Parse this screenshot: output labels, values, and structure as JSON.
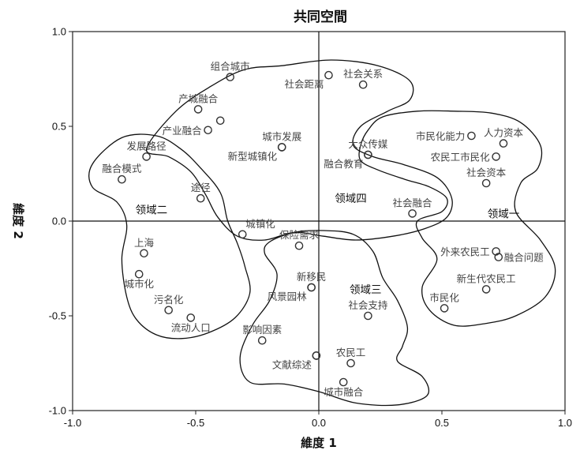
{
  "chart_data": {
    "type": "scatter",
    "title": "共同空間",
    "xlabel": "維度 1",
    "ylabel": "維度 2",
    "xlim": [
      -1.0,
      1.0
    ],
    "ylim": [
      -1.0,
      1.0
    ],
    "x_ticks": [
      "-1.0",
      "-0.5",
      "0.0",
      "0.5",
      "1.0"
    ],
    "y_ticks": [
      "1.0",
      "0.5",
      "0.0",
      "-0.5",
      "-1.0"
    ],
    "x_tick_values": [
      -1.0,
      -0.5,
      0.0,
      0.5,
      1.0
    ],
    "y_tick_values": [
      1.0,
      0.5,
      0.0,
      -0.5,
      -1.0
    ],
    "reference_lines": {
      "x": 0.0,
      "y": 0.0
    },
    "points": [
      {
        "label": "组合城市",
        "x": -0.36,
        "y": 0.76,
        "label_pos": "above"
      },
      {
        "label": "社会距离",
        "x": 0.04,
        "y": 0.77,
        "label_pos": "below-left"
      },
      {
        "label": "社会关系",
        "x": 0.18,
        "y": 0.72,
        "label_pos": "above"
      },
      {
        "label": "产城融合",
        "x": -0.49,
        "y": 0.59,
        "label_pos": "above"
      },
      {
        "label": "",
        "x": -0.4,
        "y": 0.53,
        "label_pos": "none"
      },
      {
        "label": "产业融合",
        "x": -0.45,
        "y": 0.48,
        "label_pos": "left"
      },
      {
        "label": "市民化能力",
        "x": 0.62,
        "y": 0.45,
        "label_pos": "left"
      },
      {
        "label": "人力资本",
        "x": 0.75,
        "y": 0.41,
        "label_pos": "above"
      },
      {
        "label": "城市发展",
        "x": -0.15,
        "y": 0.39,
        "label_pos": "above"
      },
      {
        "label": "新型城镇化",
        "x": -0.15,
        "y": 0.39,
        "label_pos": "below-left"
      },
      {
        "label": "大众传媒",
        "x": 0.2,
        "y": 0.35,
        "label_pos": "above"
      },
      {
        "label": "融合教育",
        "x": 0.2,
        "y": 0.35,
        "label_pos": "below-left"
      },
      {
        "label": "农民工市民化",
        "x": 0.72,
        "y": 0.34,
        "label_pos": "left"
      },
      {
        "label": "发展路径",
        "x": -0.7,
        "y": 0.34,
        "label_pos": "above"
      },
      {
        "label": "社会资本",
        "x": 0.68,
        "y": 0.2,
        "label_pos": "above"
      },
      {
        "label": "融合模式",
        "x": -0.8,
        "y": 0.22,
        "label_pos": "above"
      },
      {
        "label": "途径",
        "x": -0.48,
        "y": 0.12,
        "label_pos": "above"
      },
      {
        "label": "社会融合",
        "x": 0.38,
        "y": 0.04,
        "label_pos": "above"
      },
      {
        "label": "城镇化",
        "x": -0.31,
        "y": -0.07,
        "label_pos": "above-right"
      },
      {
        "label": "保险需求",
        "x": -0.08,
        "y": -0.13,
        "label_pos": "above"
      },
      {
        "label": "上海",
        "x": -0.71,
        "y": -0.17,
        "label_pos": "above"
      },
      {
        "label": "外来农民工",
        "x": 0.72,
        "y": -0.16,
        "label_pos": "left"
      },
      {
        "label": "融合问题",
        "x": 0.73,
        "y": -0.19,
        "label_pos": "right"
      },
      {
        "label": "城市化",
        "x": -0.73,
        "y": -0.28,
        "label_pos": "below"
      },
      {
        "label": "新移民",
        "x": -0.03,
        "y": -0.35,
        "label_pos": "above"
      },
      {
        "label": "新生代农民工",
        "x": 0.68,
        "y": -0.36,
        "label_pos": "above"
      },
      {
        "label": "风景园林",
        "x": -0.03,
        "y": -0.35,
        "label_pos": "below-left"
      },
      {
        "label": "市民化",
        "x": 0.51,
        "y": -0.46,
        "label_pos": "above"
      },
      {
        "label": "污名化",
        "x": -0.61,
        "y": -0.47,
        "label_pos": "above"
      },
      {
        "label": "社会支持",
        "x": 0.2,
        "y": -0.5,
        "label_pos": "above"
      },
      {
        "label": "流动人口",
        "x": -0.52,
        "y": -0.51,
        "label_pos": "below"
      },
      {
        "label": "影响因素",
        "x": -0.23,
        "y": -0.63,
        "label_pos": "above"
      },
      {
        "label": "",
        "x": -0.01,
        "y": -0.71,
        "label_pos": "none"
      },
      {
        "label": "农民工",
        "x": 0.13,
        "y": -0.75,
        "label_pos": "above"
      },
      {
        "label": "文献综述",
        "x": -0.01,
        "y": -0.71,
        "label_pos": "below-left"
      },
      {
        "label": "城市融合",
        "x": 0.1,
        "y": -0.85,
        "label_pos": "below"
      }
    ],
    "regions": [
      {
        "label": "领域一",
        "label_at": [
          0.75,
          0.04
        ],
        "outline": [
          [
            0.26,
            0.55
          ],
          [
            0.4,
            0.58
          ],
          [
            0.55,
            0.58
          ],
          [
            0.7,
            0.57
          ],
          [
            0.82,
            0.52
          ],
          [
            0.9,
            0.4
          ],
          [
            0.89,
            0.28
          ],
          [
            0.82,
            0.2
          ],
          [
            0.8,
            0.05
          ],
          [
            0.9,
            -0.1
          ],
          [
            0.96,
            -0.25
          ],
          [
            0.92,
            -0.4
          ],
          [
            0.8,
            -0.5
          ],
          [
            0.68,
            -0.54
          ],
          [
            0.55,
            -0.55
          ],
          [
            0.45,
            -0.47
          ],
          [
            0.42,
            -0.35
          ],
          [
            0.48,
            -0.2
          ],
          [
            0.42,
            -0.09
          ],
          [
            0.4,
            0.0
          ],
          [
            0.5,
            0.05
          ],
          [
            0.52,
            0.12
          ],
          [
            0.45,
            0.18
          ],
          [
            0.35,
            0.22
          ],
          [
            0.24,
            0.27
          ],
          [
            0.17,
            0.32
          ],
          [
            0.17,
            0.4
          ],
          [
            0.2,
            0.48
          ],
          [
            0.26,
            0.55
          ]
        ]
      },
      {
        "label": "领域二",
        "label_at": [
          -0.68,
          0.06
        ],
        "outline": [
          [
            -0.8,
            0.44
          ],
          [
            -0.66,
            0.45
          ],
          [
            -0.56,
            0.38
          ],
          [
            -0.48,
            0.28
          ],
          [
            -0.4,
            0.15
          ],
          [
            -0.37,
            0.0
          ],
          [
            -0.33,
            -0.12
          ],
          [
            -0.3,
            -0.24
          ],
          [
            -0.28,
            -0.38
          ],
          [
            -0.34,
            -0.51
          ],
          [
            -0.45,
            -0.59
          ],
          [
            -0.56,
            -0.62
          ],
          [
            -0.66,
            -0.6
          ],
          [
            -0.74,
            -0.52
          ],
          [
            -0.78,
            -0.4
          ],
          [
            -0.8,
            -0.2
          ],
          [
            -0.78,
            -0.02
          ],
          [
            -0.82,
            0.1
          ],
          [
            -0.92,
            0.18
          ],
          [
            -0.92,
            0.3
          ],
          [
            -0.8,
            0.44
          ]
        ]
      },
      {
        "label": "领域三",
        "label_at": [
          0.19,
          -0.36
        ],
        "outline": [
          [
            -0.2,
            -0.11
          ],
          [
            -0.1,
            -0.06
          ],
          [
            0.02,
            -0.05
          ],
          [
            0.14,
            -0.07
          ],
          [
            0.22,
            -0.16
          ],
          [
            0.26,
            -0.3
          ],
          [
            0.32,
            -0.42
          ],
          [
            0.36,
            -0.56
          ],
          [
            0.34,
            -0.66
          ],
          [
            0.32,
            -0.74
          ],
          [
            0.42,
            -0.82
          ],
          [
            0.44,
            -0.92
          ],
          [
            0.32,
            -0.97
          ],
          [
            0.15,
            -0.96
          ],
          [
            0.0,
            -0.9
          ],
          [
            -0.14,
            -0.86
          ],
          [
            -0.28,
            -0.85
          ],
          [
            -0.32,
            -0.72
          ],
          [
            -0.27,
            -0.55
          ],
          [
            -0.2,
            -0.42
          ],
          [
            -0.17,
            -0.28
          ],
          [
            -0.22,
            -0.17
          ],
          [
            -0.2,
            -0.11
          ]
        ]
      },
      {
        "label": "领域四",
        "label_at": [
          0.13,
          0.12
        ],
        "outline": [
          [
            -0.7,
            0.38
          ],
          [
            -0.58,
            0.58
          ],
          [
            -0.44,
            0.71
          ],
          [
            -0.3,
            0.8
          ],
          [
            -0.15,
            0.82
          ],
          [
            0.05,
            0.85
          ],
          [
            0.24,
            0.82
          ],
          [
            0.37,
            0.74
          ],
          [
            0.37,
            0.64
          ],
          [
            0.28,
            0.58
          ],
          [
            0.17,
            0.5
          ],
          [
            0.14,
            0.4
          ],
          [
            0.22,
            0.34
          ],
          [
            0.34,
            0.3
          ],
          [
            0.48,
            0.23
          ],
          [
            0.54,
            0.12
          ],
          [
            0.52,
            0.02
          ],
          [
            0.43,
            -0.04
          ],
          [
            0.3,
            -0.08
          ],
          [
            0.15,
            -0.1
          ],
          [
            0.02,
            -0.08
          ],
          [
            -0.1,
            -0.06
          ],
          [
            -0.22,
            -0.1
          ],
          [
            -0.33,
            -0.08
          ],
          [
            -0.41,
            0.02
          ],
          [
            -0.46,
            0.14
          ],
          [
            -0.52,
            0.26
          ],
          [
            -0.61,
            0.34
          ],
          [
            -0.7,
            0.38
          ]
        ]
      }
    ]
  }
}
